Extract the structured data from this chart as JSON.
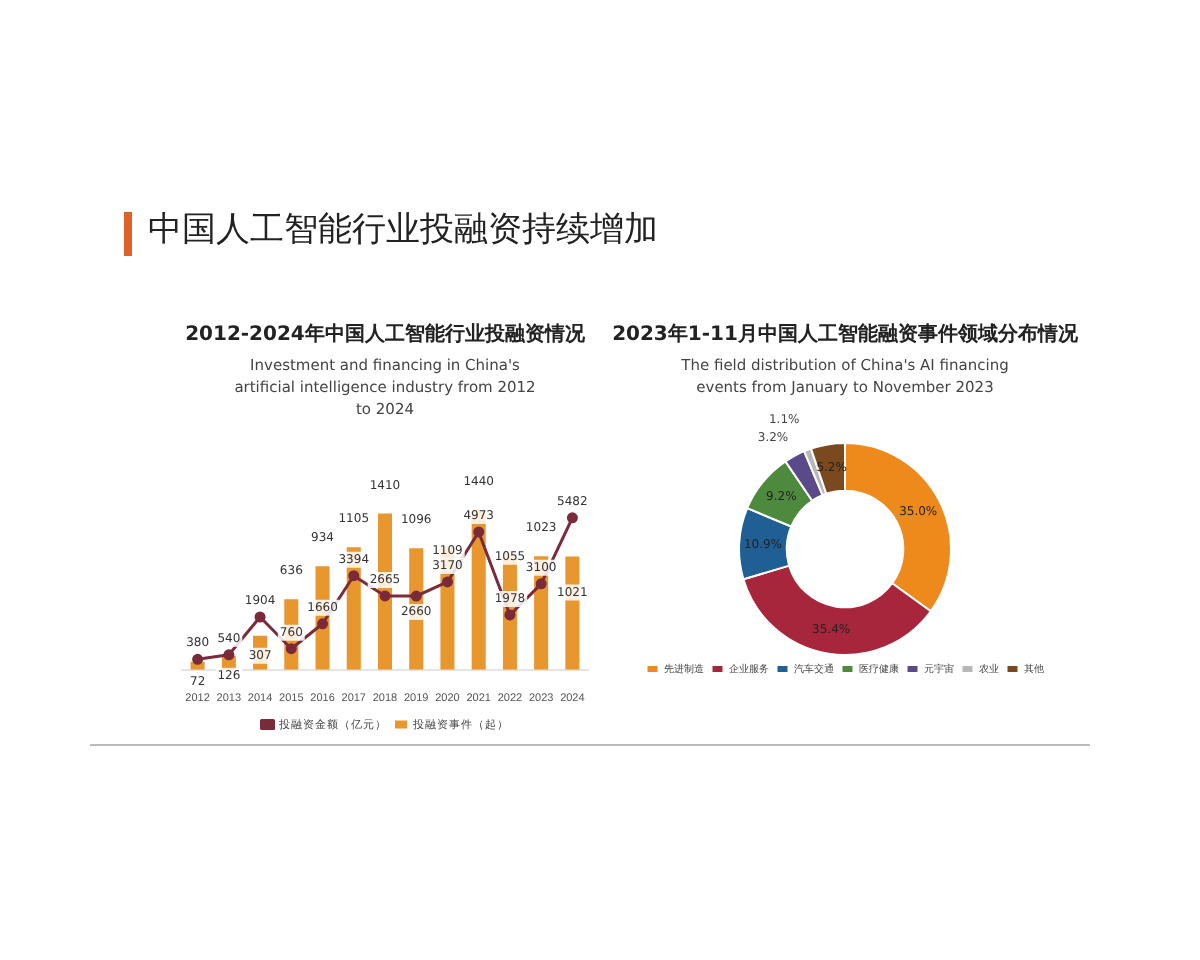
{
  "chart_data": [
    {
      "type": "other",
      "title": "中国人工智能行业投融资持续增加"
    },
    {
      "type": "bar",
      "title": "2012-2024年中国人工智能行业投融资情况",
      "subtitle": "Investment and financing in China's artificial intelligence industry from 2012 to 2024",
      "categories": [
        "2012",
        "2013",
        "2014",
        "2015",
        "2016",
        "2017",
        "2018",
        "2019",
        "2020",
        "2021",
        "2022",
        "2023",
        "2024"
      ],
      "series": [
        {
          "name": "投融资事件（起）",
          "color": "#e8962e",
          "values": [
            72,
            126,
            307,
            636,
            934,
            1105,
            1410,
            1096,
            1109,
            1440,
            1055,
            1023,
            1021
          ]
        },
        {
          "name": "投融资金额（亿元）",
          "type": "line",
          "axis": "y2",
          "color": "#7b2a3a",
          "values": [
            380,
            540,
            1904,
            760,
            1660,
            3394,
            2665,
            2660,
            3170,
            4973,
            1978,
            3100,
            5482
          ]
        }
      ],
      "data_labels": true,
      "legend": "bottom",
      "grid": false,
      "tick_labels": "x",
      "marker": "circle"
    },
    {
      "type": "donut",
      "title": "2023年1-11月中国人工智能融资事件领域分布情况",
      "subtitle": "The field distribution of China's AI financing events from January to November 2023",
      "categories": [
        "先进制造",
        "企业服务",
        "汽车交通",
        "医疗健康",
        "元宇宙",
        "农业",
        "其他"
      ],
      "values": [
        35.0,
        35.4,
        10.9,
        9.2,
        3.2,
        1.1,
        5.2
      ],
      "value_labels": [
        "35.0%",
        "35.4%",
        "10.9%",
        "9.2%",
        "3.2%",
        "1.1%",
        "5.2%"
      ],
      "colors": [
        "#ee8a1c",
        "#a8263c",
        "#1f5f93",
        "#4e8a3e",
        "#5b4a8a",
        "#b8b8b8",
        "#7a4a1e"
      ],
      "legend": "bottom"
    }
  ]
}
